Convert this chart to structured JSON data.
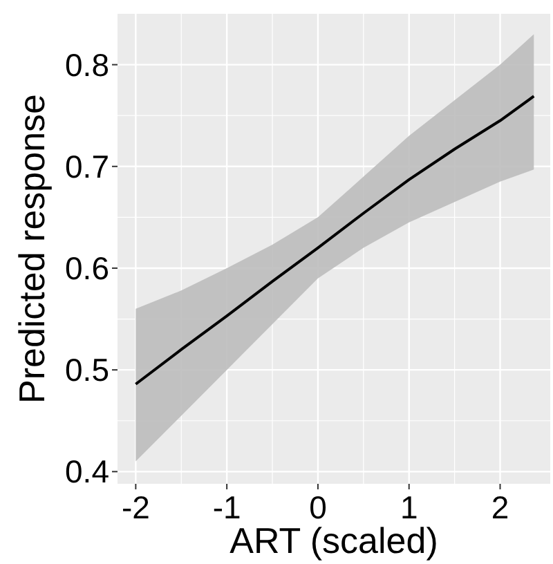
{
  "chart_data": {
    "type": "line",
    "xlabel": "ART (scaled)",
    "ylabel": "Predicted response",
    "xlim": [
      -2.2,
      2.55
    ],
    "ylim": [
      0.388,
      0.85
    ],
    "xticks": [
      -2,
      -1,
      0,
      1,
      2
    ],
    "yticks": [
      0.4,
      0.5,
      0.6,
      0.7,
      0.8
    ],
    "grid": true,
    "series": [
      {
        "color": "#000000",
        "x": [
          -2,
          -1.5,
          -1,
          -0.5,
          0,
          0.5,
          1,
          1.5,
          2,
          2.37
        ],
        "values": [
          0.486,
          0.52,
          0.553,
          0.587,
          0.62,
          0.654,
          0.687,
          0.717,
          0.745,
          0.769
        ],
        "lower": [
          0.41,
          0.455,
          0.5,
          0.545,
          0.59,
          0.62,
          0.645,
          0.665,
          0.685,
          0.697
        ],
        "upper": [
          0.56,
          0.578,
          0.6,
          0.623,
          0.65,
          0.69,
          0.73,
          0.765,
          0.8,
          0.83
        ]
      }
    ]
  }
}
